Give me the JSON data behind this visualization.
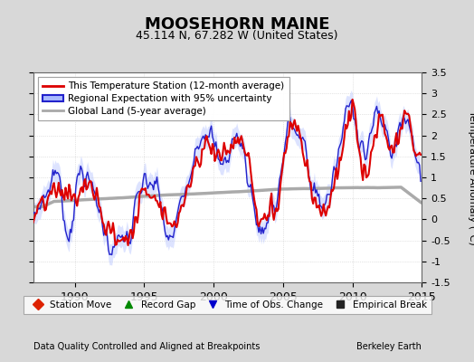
{
  "title": "MOOSEHORN MAINE",
  "subtitle": "45.114 N, 67.282 W (United States)",
  "ylabel": "Temperature Anomaly (°C)",
  "footer_left": "Data Quality Controlled and Aligned at Breakpoints",
  "footer_right": "Berkeley Earth",
  "xlim": [
    1987.0,
    2015.0
  ],
  "ylim": [
    -1.5,
    3.5
  ],
  "yticks": [
    -1.5,
    -1,
    -0.5,
    0,
    0.5,
    1,
    1.5,
    2,
    2.5,
    3,
    3.5
  ],
  "xticks": [
    1990,
    1995,
    2000,
    2005,
    2010,
    2015
  ],
  "plot_bg_color": "#ffffff",
  "fig_bg_color": "#d8d8d8",
  "red_line_color": "#dd0000",
  "blue_line_color": "#2222cc",
  "blue_fill_color": "#aabbff",
  "gray_line_color": "#aaaaaa",
  "grid_color": "#cccccc"
}
